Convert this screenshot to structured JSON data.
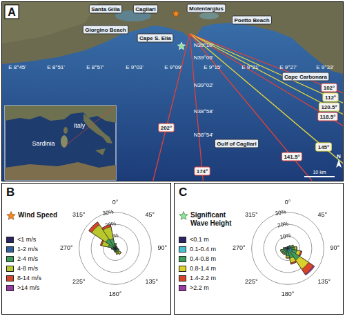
{
  "map": {
    "panel_label": "A",
    "places": [
      "Santa Gilla",
      "Cagliari",
      "Molentargius",
      "Poetto Beach",
      "Giorgino Beach",
      "Cape S. Elia",
      "Cape Carbonara",
      "Gulf of Cagliari"
    ],
    "lat_labels": [
      "N39°10'",
      "N39°06'",
      "N39°02'",
      "N38°58'",
      "N38°54'"
    ],
    "lon_labels": [
      "E 8°45'",
      "E 8°51'",
      "E 8°57'",
      "E 9°03'",
      "E 9°09'",
      "E 9°15'",
      "E 9°21'",
      "E 9°27'",
      "E 9°33'"
    ],
    "rays": [
      {
        "label": "102°",
        "color": "#e0413a"
      },
      {
        "label": "112°",
        "color": "#e8d83a"
      },
      {
        "label": "120.5°",
        "color": "#e8d83a"
      },
      {
        "label": "118.5°",
        "color": "#e0413a"
      },
      {
        "label": "145°",
        "color": "#e8d83a"
      },
      {
        "label": "141.5°",
        "color": "#e0413a"
      },
      {
        "label": "174°",
        "color": "#e0413a"
      },
      {
        "label": "202°",
        "color": "#e0413a"
      }
    ],
    "inset_labels": [
      "Italy",
      "Sardinia"
    ],
    "scale_bar": "10 km",
    "north": "N"
  },
  "chart_data": [
    {
      "type": "rose",
      "panel_label": "B",
      "title": "Wind Speed",
      "stacked": true,
      "grid": true,
      "legend": "left",
      "categories": [
        "0°",
        null,
        "45°",
        null,
        "90°",
        null,
        "135°",
        null,
        "180°",
        null,
        "225°",
        null,
        "270°",
        null,
        "315°",
        null
      ],
      "ylim": [
        0,
        30
      ],
      "yticks": [
        {
          "value": 10,
          "label": "10%"
        },
        {
          "value": 20,
          "label": "20%"
        },
        {
          "value": 30,
          "label": "30%"
        }
      ],
      "series": [
        {
          "name": "<1 m/s",
          "color": "#2b2565",
          "values": [
            0.3,
            0.2,
            0.2,
            0.2,
            0.2,
            0.2,
            0.3,
            0.3,
            0.2,
            0.2,
            0.2,
            0.2,
            0.3,
            0.3,
            0.3,
            0.3
          ]
        },
        {
          "name": "1-2 m/s",
          "color": "#2e5f9e",
          "values": [
            0.8,
            0.6,
            0.6,
            0.5,
            0.6,
            0.8,
            1.0,
            1.0,
            0.8,
            0.6,
            0.6,
            0.6,
            0.8,
            1.0,
            1.2,
            1.0
          ]
        },
        {
          "name": "2-4 m/s",
          "color": "#3f9e5a",
          "values": [
            2.0,
            0.8,
            0.8,
            0.6,
            0.9,
            1.5,
            2.5,
            2.0,
            1.5,
            0.9,
            0.8,
            0.9,
            1.5,
            4.5,
            8.0,
            7.0
          ]
        },
        {
          "name": "4-8 m/s",
          "color": "#b8c82c",
          "values": [
            1.0,
            0.3,
            0.3,
            0.2,
            0.3,
            0.5,
            2.0,
            1.5,
            0.5,
            0.3,
            0.3,
            0.3,
            0.5,
            5.5,
            14.0,
            10.0
          ]
        },
        {
          "name": "8-14 m/s",
          "color": "#d64527",
          "values": [
            0.1,
            0,
            0,
            0,
            0,
            0.1,
            0.3,
            0.2,
            0,
            0,
            0,
            0,
            0.1,
            1.2,
            2.8,
            1.8
          ]
        },
        {
          "name": ">14 m/s",
          "color": "#9b3aa5",
          "values": [
            0,
            0,
            0,
            0,
            0,
            0,
            0,
            0,
            0,
            0,
            0,
            0,
            0,
            0,
            0.1,
            0
          ]
        }
      ]
    },
    {
      "type": "rose",
      "panel_label": "C",
      "title": "Significant Wave Height",
      "stacked": true,
      "grid": true,
      "legend": "left",
      "categories": [
        "0°",
        null,
        "45°",
        null,
        "90°",
        null,
        "135°",
        null,
        "180°",
        null,
        "225°",
        null,
        "270°",
        null,
        "315°",
        null
      ],
      "ylim": [
        0,
        30
      ],
      "yticks": [
        {
          "value": 10,
          "label": "10%"
        },
        {
          "value": 20,
          "label": "20%"
        },
        {
          "value": 30,
          "label": "30%"
        }
      ],
      "series": [
        {
          "name": "<0.1 m",
          "color": "#2b2565",
          "values": [
            0.2,
            0.2,
            0.2,
            0.3,
            0.3,
            0.3,
            0.3,
            0.3,
            0.3,
            0.3,
            0.3,
            0.3,
            0.2,
            0.2,
            0.2,
            0.2
          ]
        },
        {
          "name": "0.1-0.4 m",
          "color": "#48bfd0",
          "values": [
            0.8,
            1.0,
            1.5,
            2.0,
            2.5,
            3.0,
            3.5,
            3.0,
            2.5,
            2.0,
            2.0,
            2.0,
            1.5,
            1.0,
            0.8,
            0.8
          ]
        },
        {
          "name": "0.4-0.8 m",
          "color": "#3f9e5a",
          "values": [
            0.3,
            0.5,
            1.0,
            2.0,
            3.0,
            4.5,
            8.0,
            5.0,
            3.5,
            2.5,
            3.0,
            3.0,
            1.5,
            0.6,
            0.3,
            0.3
          ]
        },
        {
          "name": "0.8-1.4 m",
          "color": "#d9d02a",
          "values": [
            0,
            0.1,
            0.3,
            0.8,
            1.5,
            3.0,
            9.0,
            4.0,
            1.5,
            0.8,
            0.6,
            0.8,
            0.4,
            0.1,
            0,
            0
          ]
        },
        {
          "name": "1.4-2.2 m",
          "color": "#d64527",
          "values": [
            0,
            0,
            0,
            0.1,
            0.3,
            1.0,
            5.0,
            1.0,
            0.3,
            0.1,
            0.1,
            0.1,
            0,
            0,
            0,
            0
          ]
        },
        {
          "name": ">2.2 m",
          "color": "#9b3aa5",
          "values": [
            0,
            0,
            0,
            0,
            0,
            0.2,
            1.0,
            0.2,
            0,
            0,
            0,
            0,
            0,
            0,
            0,
            0
          ]
        }
      ]
    }
  ]
}
